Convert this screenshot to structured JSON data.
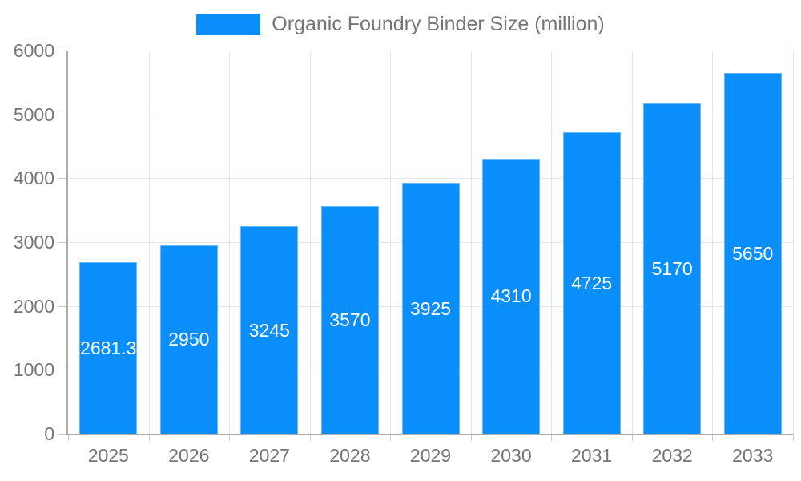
{
  "legend": {
    "label": "Organic Foundry Binder Size (million)"
  },
  "chart_data": {
    "type": "bar",
    "title": "Organic Foundry Binder Size (million)",
    "categories": [
      "2025",
      "2026",
      "2027",
      "2028",
      "2029",
      "2030",
      "2031",
      "2032",
      "2033"
    ],
    "series": [
      {
        "name": "Organic Foundry Binder Size (million)",
        "values": [
          2681.3,
          2950,
          3245,
          3570,
          3925,
          4310,
          4725,
          5170,
          5650
        ],
        "labels": [
          "2681.3",
          "2950",
          "3245",
          "3570",
          "3925",
          "4310",
          "4725",
          "5170",
          "5650"
        ]
      }
    ],
    "xlabel": "",
    "ylabel": "",
    "ylim": [
      0,
      6000
    ],
    "yticks": [
      0,
      1000,
      2000,
      3000,
      4000,
      5000,
      6000
    ],
    "grid": true,
    "legend_position": "top-center",
    "colors": {
      "bar": "#0a8ef9",
      "grid": "#e5e5e5",
      "axis": "#ababab",
      "tick": "#cccccc",
      "text": "#757575",
      "bar_label": "#ffffff"
    }
  }
}
